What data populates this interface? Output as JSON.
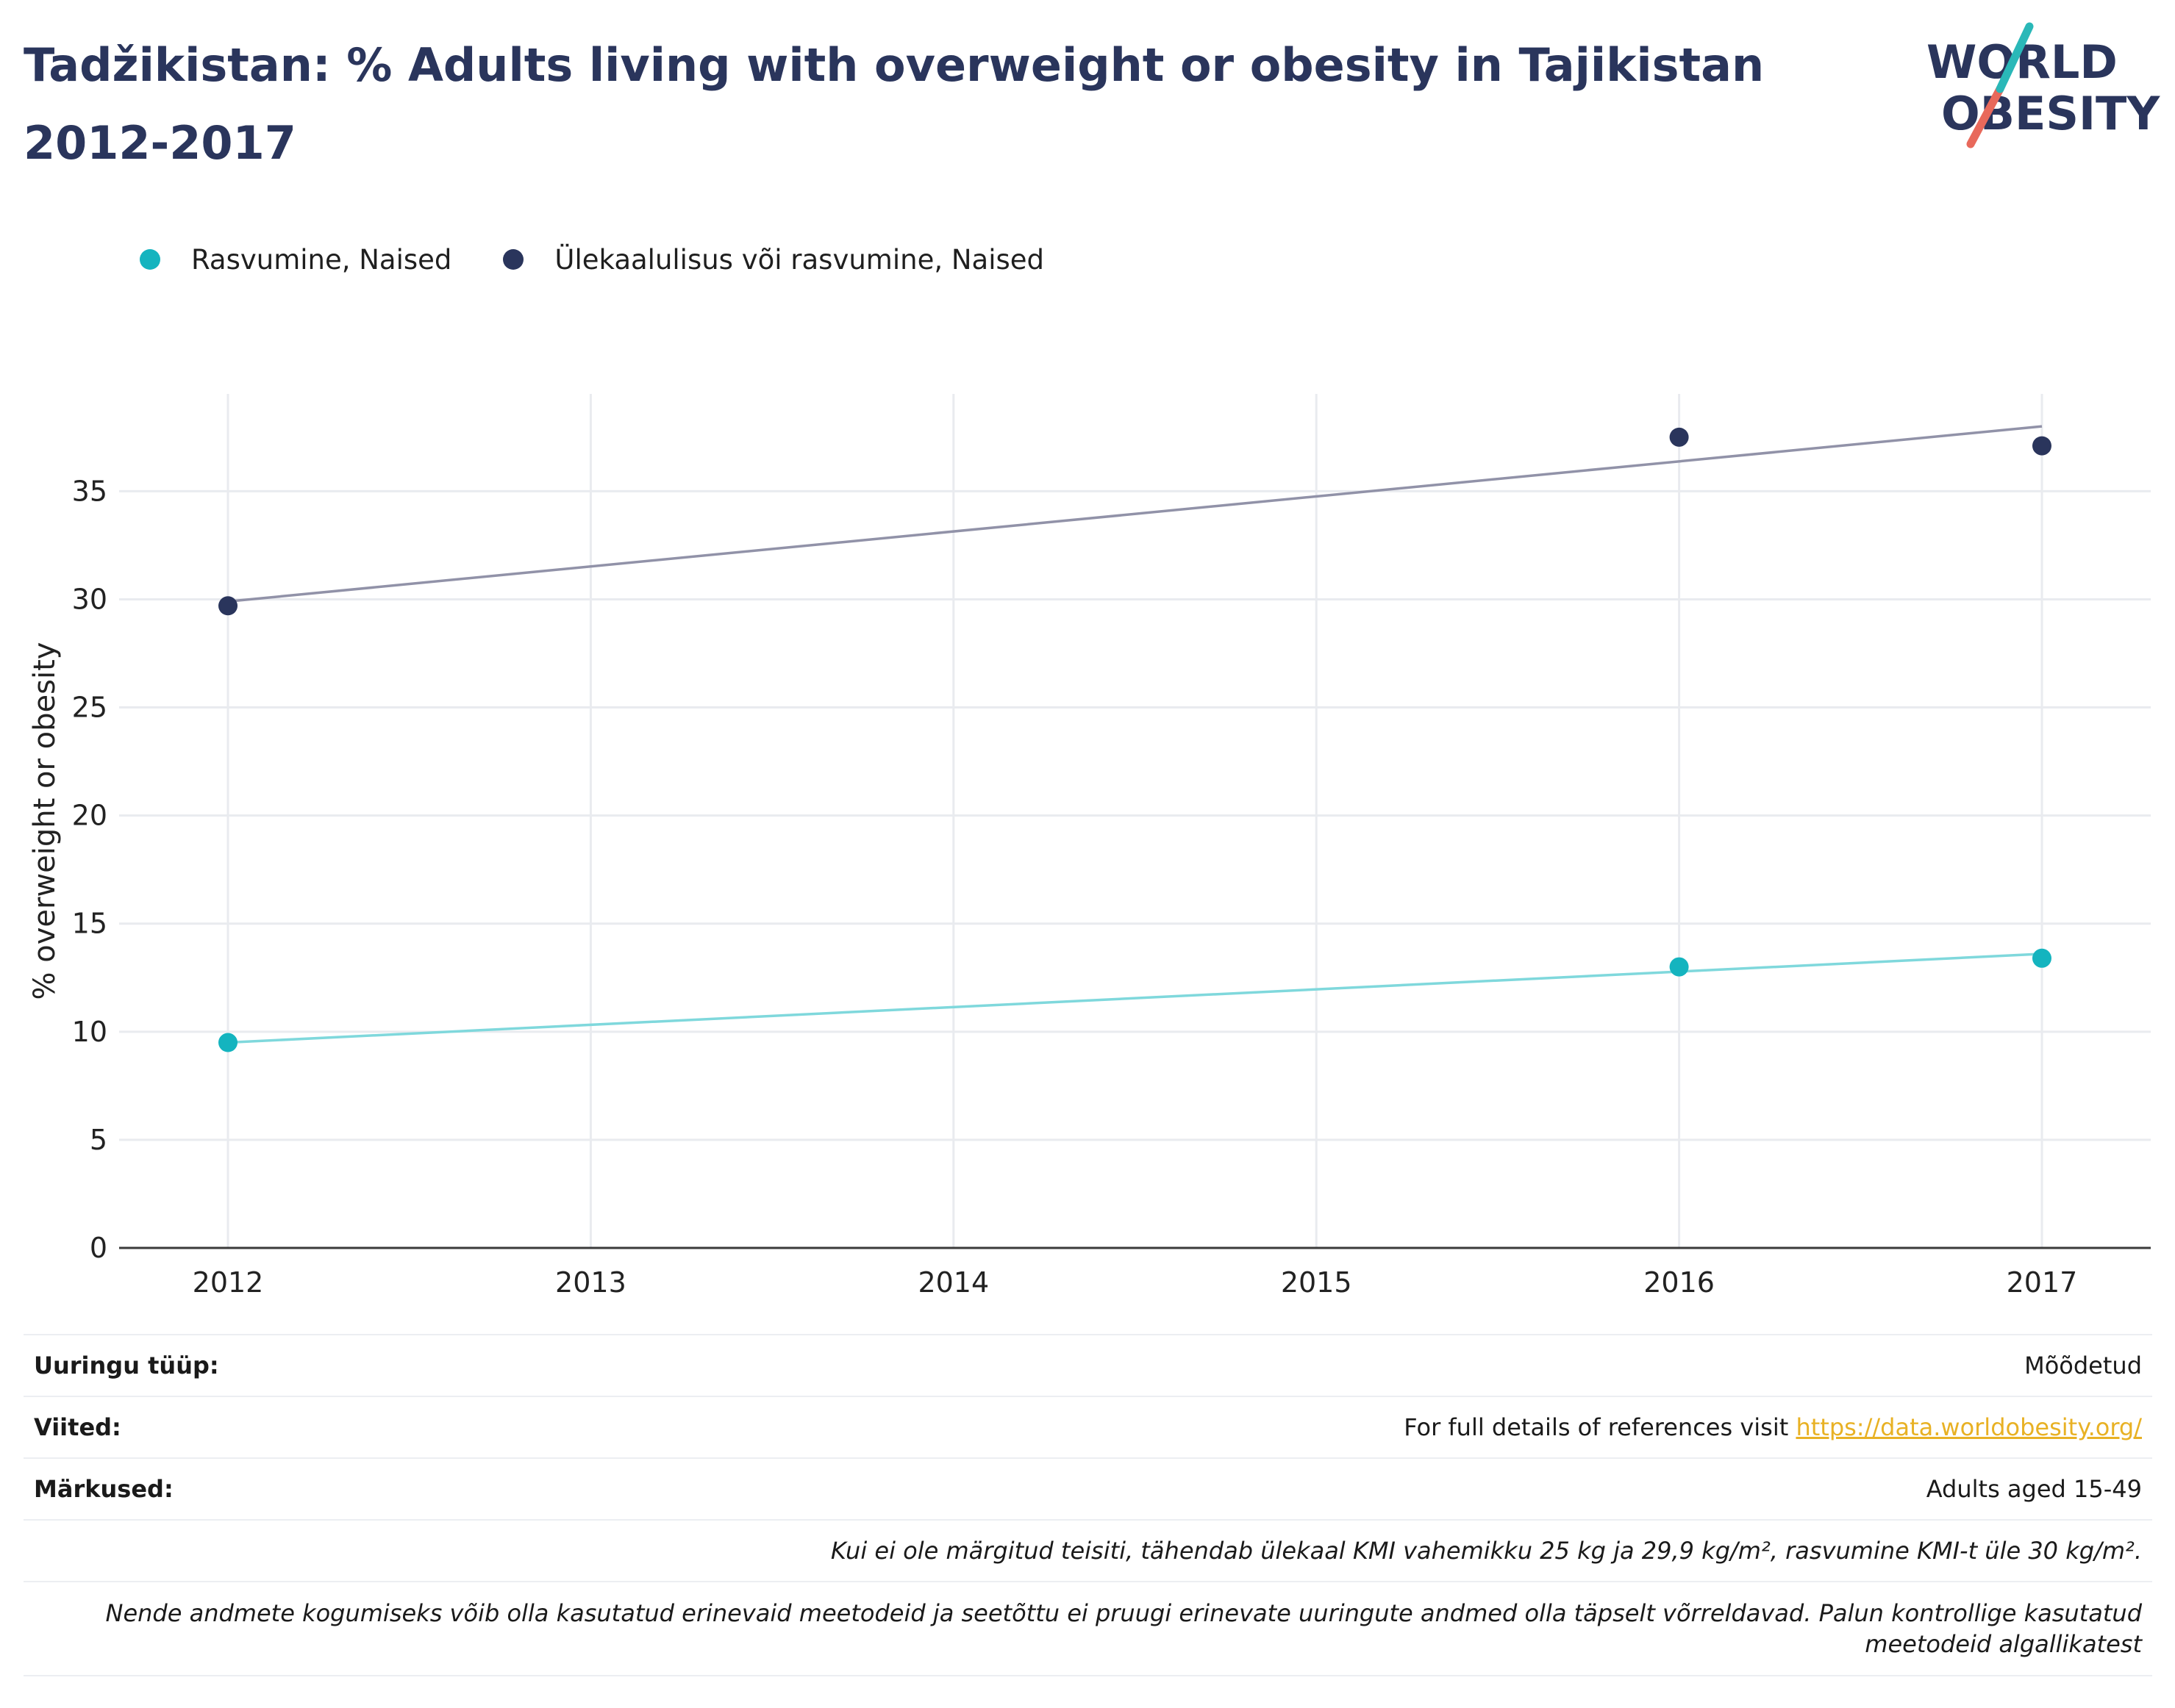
{
  "title": "Tadžikistan: % Adults living with overweight or obesity in Tajikistan 2012-2017",
  "logo": {
    "line1": "WORLD",
    "line2": "OBESITY"
  },
  "legend": [
    {
      "label": "Rasvumine, Naised",
      "color": "#14b4bf"
    },
    {
      "label": "Ülekaalulisus või rasvumine, Naised",
      "color": "#2a355c"
    }
  ],
  "chart_data": {
    "type": "scatter",
    "title": "Tadžikistan: % Adults living with overweight or obesity in Tajikistan 2012-2017",
    "xlabel": "",
    "ylabel": "% overweight or obesity",
    "x_ticks": [
      "2012",
      "2013",
      "2014",
      "2015",
      "2016",
      "2017"
    ],
    "y_ticks": [
      0,
      5,
      10,
      15,
      20,
      25,
      30,
      35
    ],
    "xlim": [
      2011.7,
      2017.3
    ],
    "ylim": [
      0,
      39.5
    ],
    "grid": true,
    "legend_position": "top-left",
    "series": [
      {
        "name": "Rasvumine, Naised",
        "color": "#14b4bf",
        "trend_color": "#7fd8dc",
        "points": [
          {
            "x": 2012,
            "y": 9.5
          },
          {
            "x": 2016,
            "y": 13.0
          },
          {
            "x": 2017,
            "y": 13.4
          }
        ],
        "trend": [
          {
            "x": 2012,
            "y": 9.5
          },
          {
            "x": 2017,
            "y": 13.6
          }
        ]
      },
      {
        "name": "Ülekaalulisus või rasvumine, Naised",
        "color": "#2a355c",
        "trend_color": "#9192a8",
        "points": [
          {
            "x": 2012,
            "y": 29.7
          },
          {
            "x": 2016,
            "y": 37.5
          },
          {
            "x": 2017,
            "y": 37.1
          }
        ],
        "trend": [
          {
            "x": 2012,
            "y": 29.9
          },
          {
            "x": 2017,
            "y": 38.0
          }
        ]
      }
    ]
  },
  "meta": {
    "survey_type_label": "Uuringu tüüp:",
    "survey_type_value": "Mõõdetud",
    "references_label": "Viited:",
    "references_text": "For full details of references visit ",
    "references_link": "https://data.worldobesity.org/",
    "notes_label": "Märkused:",
    "notes_value": "Adults aged 15-49",
    "definition_note": "Kui ei ole märgitud teisiti, tähendab ülekaal KMI vahemikku 25 kg ja 29,9 kg/m², rasvumine KMI-t üle 30 kg/m².",
    "methods_note": "Nende andmete kogumiseks võib olla kasutatud erinevaid meetodeid ja seetõttu ei pruugi erinevate uuringute andmed olla täpselt võrreldavad. Palun kontrollige kasutatud meetodeid algallikatest"
  }
}
